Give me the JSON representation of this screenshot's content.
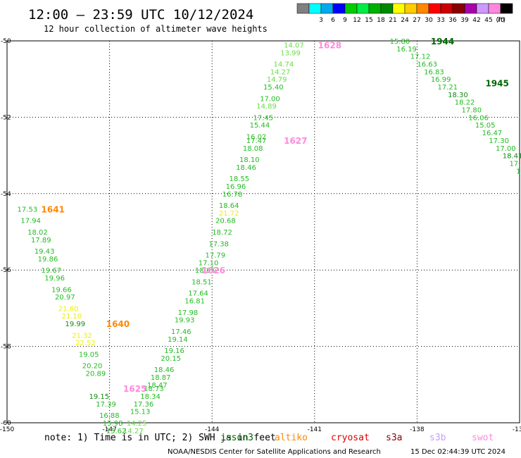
{
  "header": {
    "title": "12:00 — 23:59 UTC 10/12/2024",
    "subtitle": "12 hour collection of altimeter wave heights"
  },
  "legend": {
    "unit": "(ft)",
    "items": [
      {
        "label": "",
        "color": "#808080"
      },
      {
        "label": "3",
        "color": "#00ffff"
      },
      {
        "label": "6",
        "color": "#00aaee"
      },
      {
        "label": "9",
        "color": "#0000ff"
      },
      {
        "label": "12",
        "color": "#00cc00"
      },
      {
        "label": "15",
        "color": "#00ee44"
      },
      {
        "label": "18",
        "color": "#00b000"
      },
      {
        "label": "21",
        "color": "#008800"
      },
      {
        "label": "24",
        "color": "#ffff00"
      },
      {
        "label": "27",
        "color": "#ffcc00"
      },
      {
        "label": "30",
        "color": "#ff8800"
      },
      {
        "label": "33",
        "color": "#ff0000"
      },
      {
        "label": "36",
        "color": "#cc0000"
      },
      {
        "label": "39",
        "color": "#880000"
      },
      {
        "label": "42",
        "color": "#aa00aa"
      },
      {
        "label": "45",
        "color": "#cc99ff"
      },
      {
        "label": "70",
        "color": "#ff88dd"
      },
      {
        "label": "",
        "color": "#000000"
      }
    ]
  },
  "map": {
    "lon_ticks": [
      -150,
      -147,
      -144,
      -141,
      -138,
      -135
    ],
    "lon_tick_labels": [
      "-150",
      "-147",
      "-144",
      "-141",
      "-138",
      "-135"
    ],
    "lat_ticks": [
      -50,
      -52,
      -54,
      -56,
      -58,
      -60
    ],
    "lat_tick_labels": [
      "-50",
      "-52",
      "-54",
      "-56",
      "-58",
      "-60"
    ],
    "lon_range": [
      -150,
      -135
    ],
    "lat_range": [
      -60,
      -50
    ]
  },
  "color_by_level": {
    "light": "#66dd44",
    "mid": "#22bb22",
    "dark": "#118811",
    "yellow": "#eeee00"
  },
  "tracks": [
    {
      "name": "pass-1",
      "times": [
        {
          "label": "1628",
          "color": "#ff88dd",
          "lon": -140.9,
          "lat": -50.1
        },
        {
          "label": "1627",
          "color": "#ff88dd",
          "lon": -141.9,
          "lat": -52.6
        },
        {
          "label": "1626",
          "color": "#ff88dd",
          "lon": -144.3,
          "lat": -56.0
        },
        {
          "label": "1625",
          "color": "#ff88dd",
          "lon": -146.6,
          "lat": -59.1
        }
      ],
      "points": [
        {
          "v": "14.07",
          "c": "light",
          "lon": -141.9,
          "lat": -50.1
        },
        {
          "v": "13.99",
          "c": "light",
          "lon": -142.0,
          "lat": -50.3
        },
        {
          "v": "14.74",
          "c": "light",
          "lon": -142.2,
          "lat": -50.6
        },
        {
          "v": "14.27",
          "c": "light",
          "lon": -142.3,
          "lat": -50.8
        },
        {
          "v": "14.79",
          "c": "light",
          "lon": -142.4,
          "lat": -51.0
        },
        {
          "v": "15.40",
          "c": "mid",
          "lon": -142.5,
          "lat": -51.2
        },
        {
          "v": "17.00",
          "c": "mid",
          "lon": -142.6,
          "lat": -51.5
        },
        {
          "v": "14.89",
          "c": "light",
          "lon": -142.7,
          "lat": -51.7
        },
        {
          "v": "17.45",
          "c": "mid",
          "lon": -142.8,
          "lat": -52.0
        },
        {
          "v": "15.44",
          "c": "mid",
          "lon": -142.9,
          "lat": -52.2
        },
        {
          "v": "16.02",
          "c": "mid",
          "lon": -143.0,
          "lat": -52.5
        },
        {
          "v": "17.47",
          "c": "mid",
          "lon": -143.0,
          "lat": -52.6
        },
        {
          "v": "18.08",
          "c": "mid",
          "lon": -143.1,
          "lat": -52.8
        },
        {
          "v": "18.10",
          "c": "mid",
          "lon": -143.2,
          "lat": -53.1
        },
        {
          "v": "18.46",
          "c": "mid",
          "lon": -143.3,
          "lat": -53.3
        },
        {
          "v": "18.55",
          "c": "mid",
          "lon": -143.5,
          "lat": -53.6
        },
        {
          "v": "16.96",
          "c": "mid",
          "lon": -143.6,
          "lat": -53.8
        },
        {
          "v": "16.78",
          "c": "mid",
          "lon": -143.7,
          "lat": -54.0
        },
        {
          "v": "18.64",
          "c": "mid",
          "lon": -143.8,
          "lat": -54.3
        },
        {
          "v": "21.72",
          "c": "yellow",
          "lon": -143.8,
          "lat": -54.5
        },
        {
          "v": "20.68",
          "c": "mid",
          "lon": -143.9,
          "lat": -54.7
        },
        {
          "v": "18.72",
          "c": "mid",
          "lon": -144.0,
          "lat": -55.0
        },
        {
          "v": "17.38",
          "c": "mid",
          "lon": -144.1,
          "lat": -55.3
        },
        {
          "v": "17.79",
          "c": "mid",
          "lon": -144.2,
          "lat": -55.6
        },
        {
          "v": "17.10",
          "c": "mid",
          "lon": -144.4,
          "lat": -55.8
        },
        {
          "v": "18.85",
          "c": "mid",
          "lon": -144.5,
          "lat": -56.0
        },
        {
          "v": "18.51",
          "c": "mid",
          "lon": -144.6,
          "lat": -56.3
        },
        {
          "v": "17.64",
          "c": "mid",
          "lon": -144.7,
          "lat": -56.6
        },
        {
          "v": "16.81",
          "c": "mid",
          "lon": -144.8,
          "lat": -56.8
        },
        {
          "v": "17.98",
          "c": "mid",
          "lon": -145.0,
          "lat": -57.1
        },
        {
          "v": "19.93",
          "c": "mid",
          "lon": -145.1,
          "lat": -57.3
        },
        {
          "v": "17.46",
          "c": "mid",
          "lon": -145.2,
          "lat": -57.6
        },
        {
          "v": "19.14",
          "c": "mid",
          "lon": -145.3,
          "lat": -57.8
        },
        {
          "v": "19.16",
          "c": "mid",
          "lon": -145.4,
          "lat": -58.1
        },
        {
          "v": "20.15",
          "c": "mid",
          "lon": -145.5,
          "lat": -58.3
        },
        {
          "v": "18.46",
          "c": "mid",
          "lon": -145.7,
          "lat": -58.6
        },
        {
          "v": "18.87",
          "c": "mid",
          "lon": -145.8,
          "lat": -58.8
        },
        {
          "v": "18.47",
          "c": "mid",
          "lon": -145.9,
          "lat": -59.0
        },
        {
          "v": "18.73",
          "c": "mid",
          "lon": -146.0,
          "lat": -59.1
        },
        {
          "v": "18.34",
          "c": "mid",
          "lon": -146.1,
          "lat": -59.3
        },
        {
          "v": "17.36",
          "c": "mid",
          "lon": -146.3,
          "lat": -59.5
        },
        {
          "v": "15.13",
          "c": "mid",
          "lon": -146.4,
          "lat": -59.7
        },
        {
          "v": "14.25",
          "c": "light",
          "lon": -146.5,
          "lat": -60.0
        },
        {
          "v": "14.27",
          "c": "light",
          "lon": -146.6,
          "lat": -60.2
        }
      ]
    },
    {
      "name": "pass-2",
      "times": [
        {
          "label": "1641",
          "color": "#ff8800",
          "lon": -149.0,
          "lat": -54.4
        },
        {
          "label": "1640",
          "color": "#ff8800",
          "lon": -147.1,
          "lat": -57.4
        }
      ],
      "points": [
        {
          "v": "17.53",
          "c": "mid",
          "lon": -149.7,
          "lat": -54.4
        },
        {
          "v": "17.94",
          "c": "mid",
          "lon": -149.6,
          "lat": -54.7
        },
        {
          "v": "18.02",
          "c": "mid",
          "lon": -149.4,
          "lat": -55.0
        },
        {
          "v": "17.89",
          "c": "mid",
          "lon": -149.3,
          "lat": -55.2
        },
        {
          "v": "19.43",
          "c": "mid",
          "lon": -149.2,
          "lat": -55.5
        },
        {
          "v": "19.86",
          "c": "mid",
          "lon": -149.1,
          "lat": -55.7
        },
        {
          "v": "19.67",
          "c": "mid",
          "lon": -149.0,
          "lat": -56.0
        },
        {
          "v": "19.96",
          "c": "mid",
          "lon": -148.9,
          "lat": -56.2
        },
        {
          "v": "19.66",
          "c": "mid",
          "lon": -148.7,
          "lat": -56.5
        },
        {
          "v": "20.97",
          "c": "mid",
          "lon": -148.6,
          "lat": -56.7
        },
        {
          "v": "21.60",
          "c": "yellow",
          "lon": -148.5,
          "lat": -57.0
        },
        {
          "v": "21.10",
          "c": "yellow",
          "lon": -148.4,
          "lat": -57.2
        },
        {
          "v": "19.99",
          "c": "dark",
          "lon": -148.3,
          "lat": -57.4
        },
        {
          "v": "21.32",
          "c": "yellow",
          "lon": -148.1,
          "lat": -57.7
        },
        {
          "v": "22.52",
          "c": "yellow",
          "lon": -148.0,
          "lat": -57.9
        },
        {
          "v": "19.05",
          "c": "mid",
          "lon": -147.9,
          "lat": -58.2
        },
        {
          "v": "20.20",
          "c": "mid",
          "lon": -147.8,
          "lat": -58.5
        },
        {
          "v": "20.89",
          "c": "mid",
          "lon": -147.7,
          "lat": -58.7
        },
        {
          "v": "19.15",
          "c": "dark",
          "lon": -147.6,
          "lat": -59.3
        },
        {
          "v": "17.39",
          "c": "mid",
          "lon": -147.4,
          "lat": -59.5
        },
        {
          "v": "16.88",
          "c": "mid",
          "lon": -147.3,
          "lat": -59.8
        },
        {
          "v": "15.98",
          "c": "mid",
          "lon": -147.2,
          "lat": -60.0
        },
        {
          "v": "15.62",
          "c": "mid",
          "lon": -147.1,
          "lat": -60.2
        }
      ]
    },
    {
      "name": "pass-3",
      "times": [
        {
          "label": "1944",
          "color": "#006600",
          "lon": -137.6,
          "lat": -50.0
        },
        {
          "label": "1945",
          "color": "#006600",
          "lon": -136.0,
          "lat": -51.1
        }
      ],
      "points": [
        {
          "v": "15.80",
          "c": "mid",
          "lon": -138.8,
          "lat": -50.0
        },
        {
          "v": "16.19",
          "c": "mid",
          "lon": -138.6,
          "lat": -50.2
        },
        {
          "v": "17.12",
          "c": "mid",
          "lon": -138.2,
          "lat": -50.4
        },
        {
          "v": "16.63",
          "c": "mid",
          "lon": -138.0,
          "lat": -50.6
        },
        {
          "v": "16.83",
          "c": "mid",
          "lon": -137.8,
          "lat": -50.8
        },
        {
          "v": "16.99",
          "c": "mid",
          "lon": -137.6,
          "lat": -51.0
        },
        {
          "v": "17.21",
          "c": "mid",
          "lon": -137.4,
          "lat": -51.2
        },
        {
          "v": "18.30",
          "c": "dark",
          "lon": -137.1,
          "lat": -51.4
        },
        {
          "v": "18.22",
          "c": "mid",
          "lon": -136.9,
          "lat": -51.6
        },
        {
          "v": "17.80",
          "c": "mid",
          "lon": -136.7,
          "lat": -51.8
        },
        {
          "v": "16.06",
          "c": "mid",
          "lon": -136.5,
          "lat": -52.0
        },
        {
          "v": "15.05",
          "c": "mid",
          "lon": -136.3,
          "lat": -52.2
        },
        {
          "v": "16.47",
          "c": "mid",
          "lon": -136.1,
          "lat": -52.4
        },
        {
          "v": "17.30",
          "c": "mid",
          "lon": -135.9,
          "lat": -52.6
        },
        {
          "v": "17.00",
          "c": "mid",
          "lon": -135.7,
          "lat": -52.8
        },
        {
          "v": "18.41",
          "c": "dark",
          "lon": -135.5,
          "lat": -53.0
        },
        {
          "v": "17.63",
          "c": "mid",
          "lon": -135.3,
          "lat": -53.2
        },
        {
          "v": "17.56",
          "c": "mid",
          "lon": -135.1,
          "lat": -53.4
        },
        {
          "v": "17.99",
          "c": "mid",
          "lon": -134.9,
          "lat": -53.6
        },
        {
          "v": "16.?",
          "c": "mid",
          "lon": -134.7,
          "lat": -53.8
        }
      ]
    }
  ],
  "footer": {
    "note": "note: 1) Time is in UTC; 2) SWH is in feet",
    "satellites": [
      {
        "name": "jason3",
        "color": "#006600"
      },
      {
        "name": "altiko",
        "color": "#ff8800"
      },
      {
        "name": "cryosat",
        "color": "#dd0000"
      },
      {
        "name": "s3a",
        "color": "#880000"
      },
      {
        "name": "s3b",
        "color": "#cc99ff"
      },
      {
        "name": "swot",
        "color": "#ff88dd"
      }
    ],
    "credit": "NOAA/NESDIS Center for Satellite Applications and Research",
    "timestamp": "15 Dec 02:44:39 UTC 2024"
  }
}
